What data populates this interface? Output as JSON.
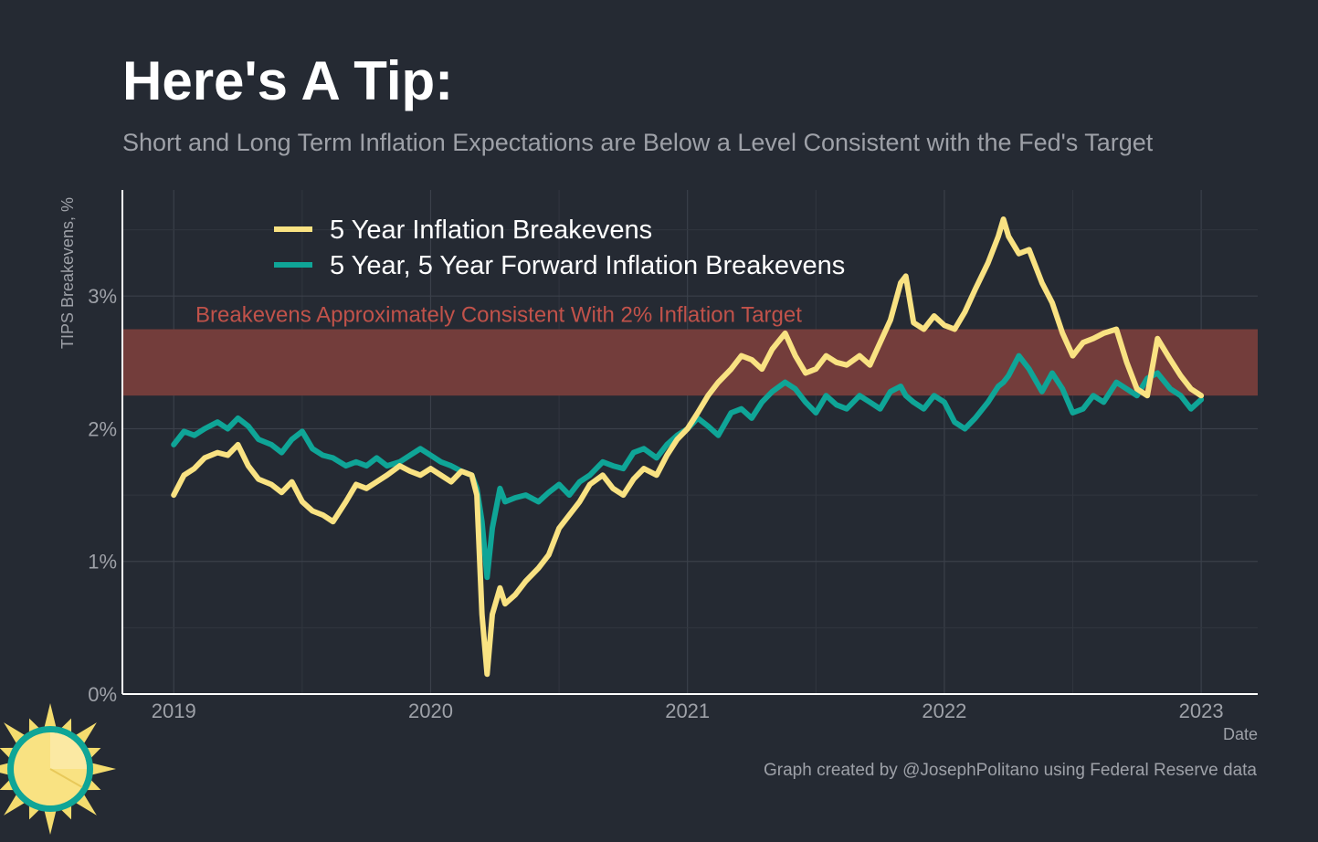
{
  "header": {
    "title": "Here's A Tip:",
    "subtitle": "Short and Long Term Inflation Expectations are Below a Level Consistent with the Fed's Target"
  },
  "caption": "Graph created by @JosephPolitano using Federal Reserve data",
  "logo": {
    "icon": "sun-logo-icon"
  },
  "colors": {
    "background": "#252a33",
    "series_5y": "#f9e282",
    "series_5y5y": "#0fa597",
    "band": "#733d3b",
    "band_label": "#c1524a"
  },
  "chart_data": {
    "type": "line",
    "title": "Here's A Tip:",
    "xlabel": "Date",
    "ylabel": "TIPS Breakevens, %",
    "xlim": [
      2018.8,
      2023.22
    ],
    "ylim": [
      0,
      3.8
    ],
    "x_ticks": [
      2019,
      2020,
      2021,
      2022,
      2023
    ],
    "x_tick_labels": [
      "2019",
      "2020",
      "2021",
      "2022",
      "2023"
    ],
    "y_ticks": [
      0,
      1,
      2,
      3
    ],
    "y_tick_labels": [
      "0%",
      "1%",
      "2%",
      "3%"
    ],
    "grid": true,
    "band": {
      "ymin": 2.25,
      "ymax": 2.75,
      "label": "Breakevens Approximately Consistent With 2% Inflation Target"
    },
    "legend_position": "top-left",
    "series": [
      {
        "name": "5 Year Inflation Breakevens",
        "color": "#f9e282",
        "x": [
          2019.0,
          2019.04,
          2019.08,
          2019.12,
          2019.17,
          2019.21,
          2019.25,
          2019.29,
          2019.33,
          2019.38,
          2019.42,
          2019.46,
          2019.5,
          2019.54,
          2019.58,
          2019.62,
          2019.67,
          2019.71,
          2019.75,
          2019.79,
          2019.83,
          2019.88,
          2019.92,
          2019.96,
          2020.0,
          2020.04,
          2020.08,
          2020.12,
          2020.16,
          2020.18,
          2020.2,
          2020.22,
          2020.24,
          2020.27,
          2020.29,
          2020.33,
          2020.37,
          2020.42,
          2020.46,
          2020.5,
          2020.54,
          2020.58,
          2020.62,
          2020.67,
          2020.71,
          2020.75,
          2020.79,
          2020.83,
          2020.88,
          2020.92,
          2020.96,
          2021.0,
          2021.04,
          2021.08,
          2021.12,
          2021.17,
          2021.21,
          2021.25,
          2021.29,
          2021.33,
          2021.38,
          2021.42,
          2021.46,
          2021.5,
          2021.54,
          2021.58,
          2021.62,
          2021.67,
          2021.71,
          2021.75,
          2021.79,
          2021.83,
          2021.85,
          2021.88,
          2021.92,
          2021.96,
          2022.0,
          2022.04,
          2022.08,
          2022.12,
          2022.17,
          2022.21,
          2022.23,
          2022.25,
          2022.29,
          2022.33,
          2022.38,
          2022.42,
          2022.46,
          2022.5,
          2022.54,
          2022.58,
          2022.62,
          2022.67,
          2022.71,
          2022.75,
          2022.79,
          2022.83,
          2022.88,
          2022.92,
          2022.96,
          2023.0
        ],
        "values": [
          1.5,
          1.65,
          1.7,
          1.78,
          1.82,
          1.8,
          1.88,
          1.72,
          1.62,
          1.58,
          1.52,
          1.6,
          1.45,
          1.38,
          1.35,
          1.3,
          1.45,
          1.58,
          1.55,
          1.6,
          1.65,
          1.72,
          1.68,
          1.65,
          1.7,
          1.65,
          1.6,
          1.68,
          1.65,
          1.5,
          0.6,
          0.15,
          0.6,
          0.8,
          0.68,
          0.75,
          0.85,
          0.95,
          1.05,
          1.25,
          1.35,
          1.45,
          1.58,
          1.65,
          1.55,
          1.5,
          1.62,
          1.7,
          1.65,
          1.8,
          1.92,
          2.0,
          2.12,
          2.25,
          2.35,
          2.45,
          2.55,
          2.52,
          2.45,
          2.6,
          2.72,
          2.55,
          2.42,
          2.45,
          2.55,
          2.5,
          2.48,
          2.55,
          2.48,
          2.65,
          2.82,
          3.1,
          3.15,
          2.8,
          2.75,
          2.85,
          2.78,
          2.75,
          2.88,
          3.05,
          3.25,
          3.45,
          3.58,
          3.45,
          3.32,
          3.35,
          3.1,
          2.95,
          2.72,
          2.55,
          2.65,
          2.68,
          2.72,
          2.75,
          2.5,
          2.3,
          2.25,
          2.68,
          2.52,
          2.4,
          2.3,
          2.25
        ]
      },
      {
        "name": "5 Year, 5 Year Forward Inflation Breakevens",
        "color": "#0fa597",
        "x": [
          2019.0,
          2019.04,
          2019.08,
          2019.12,
          2019.17,
          2019.21,
          2019.25,
          2019.29,
          2019.33,
          2019.38,
          2019.42,
          2019.46,
          2019.5,
          2019.54,
          2019.58,
          2019.62,
          2019.67,
          2019.71,
          2019.75,
          2019.79,
          2019.83,
          2019.88,
          2019.92,
          2019.96,
          2020.0,
          2020.04,
          2020.08,
          2020.12,
          2020.16,
          2020.18,
          2020.2,
          2020.22,
          2020.24,
          2020.27,
          2020.29,
          2020.33,
          2020.37,
          2020.42,
          2020.46,
          2020.5,
          2020.54,
          2020.58,
          2020.62,
          2020.67,
          2020.71,
          2020.75,
          2020.79,
          2020.83,
          2020.88,
          2020.92,
          2020.96,
          2021.0,
          2021.04,
          2021.08,
          2021.12,
          2021.17,
          2021.21,
          2021.25,
          2021.29,
          2021.33,
          2021.38,
          2021.42,
          2021.46,
          2021.5,
          2021.54,
          2021.58,
          2021.62,
          2021.67,
          2021.71,
          2021.75,
          2021.79,
          2021.83,
          2021.85,
          2021.88,
          2021.92,
          2021.96,
          2022.0,
          2022.04,
          2022.08,
          2022.12,
          2022.17,
          2022.21,
          2022.23,
          2022.25,
          2022.29,
          2022.33,
          2022.38,
          2022.42,
          2022.46,
          2022.5,
          2022.54,
          2022.58,
          2022.62,
          2022.67,
          2022.71,
          2022.75,
          2022.79,
          2022.83,
          2022.88,
          2022.92,
          2022.96,
          2023.0
        ],
        "values": [
          1.88,
          1.98,
          1.95,
          2.0,
          2.05,
          2.0,
          2.08,
          2.02,
          1.92,
          1.88,
          1.82,
          1.92,
          1.98,
          1.85,
          1.8,
          1.78,
          1.72,
          1.75,
          1.72,
          1.78,
          1.72,
          1.75,
          1.8,
          1.85,
          1.8,
          1.75,
          1.72,
          1.68,
          1.65,
          1.55,
          1.3,
          0.88,
          1.25,
          1.55,
          1.45,
          1.48,
          1.5,
          1.45,
          1.52,
          1.58,
          1.5,
          1.6,
          1.65,
          1.75,
          1.72,
          1.7,
          1.82,
          1.85,
          1.78,
          1.88,
          1.95,
          2.0,
          2.08,
          2.02,
          1.95,
          2.12,
          2.15,
          2.08,
          2.2,
          2.28,
          2.35,
          2.3,
          2.2,
          2.12,
          2.25,
          2.18,
          2.15,
          2.25,
          2.2,
          2.15,
          2.28,
          2.32,
          2.25,
          2.2,
          2.15,
          2.25,
          2.2,
          2.05,
          2.0,
          2.08,
          2.2,
          2.32,
          2.35,
          2.4,
          2.55,
          2.45,
          2.28,
          2.42,
          2.3,
          2.12,
          2.15,
          2.25,
          2.2,
          2.35,
          2.3,
          2.25,
          2.38,
          2.42,
          2.3,
          2.25,
          2.15,
          2.22
        ]
      }
    ]
  }
}
